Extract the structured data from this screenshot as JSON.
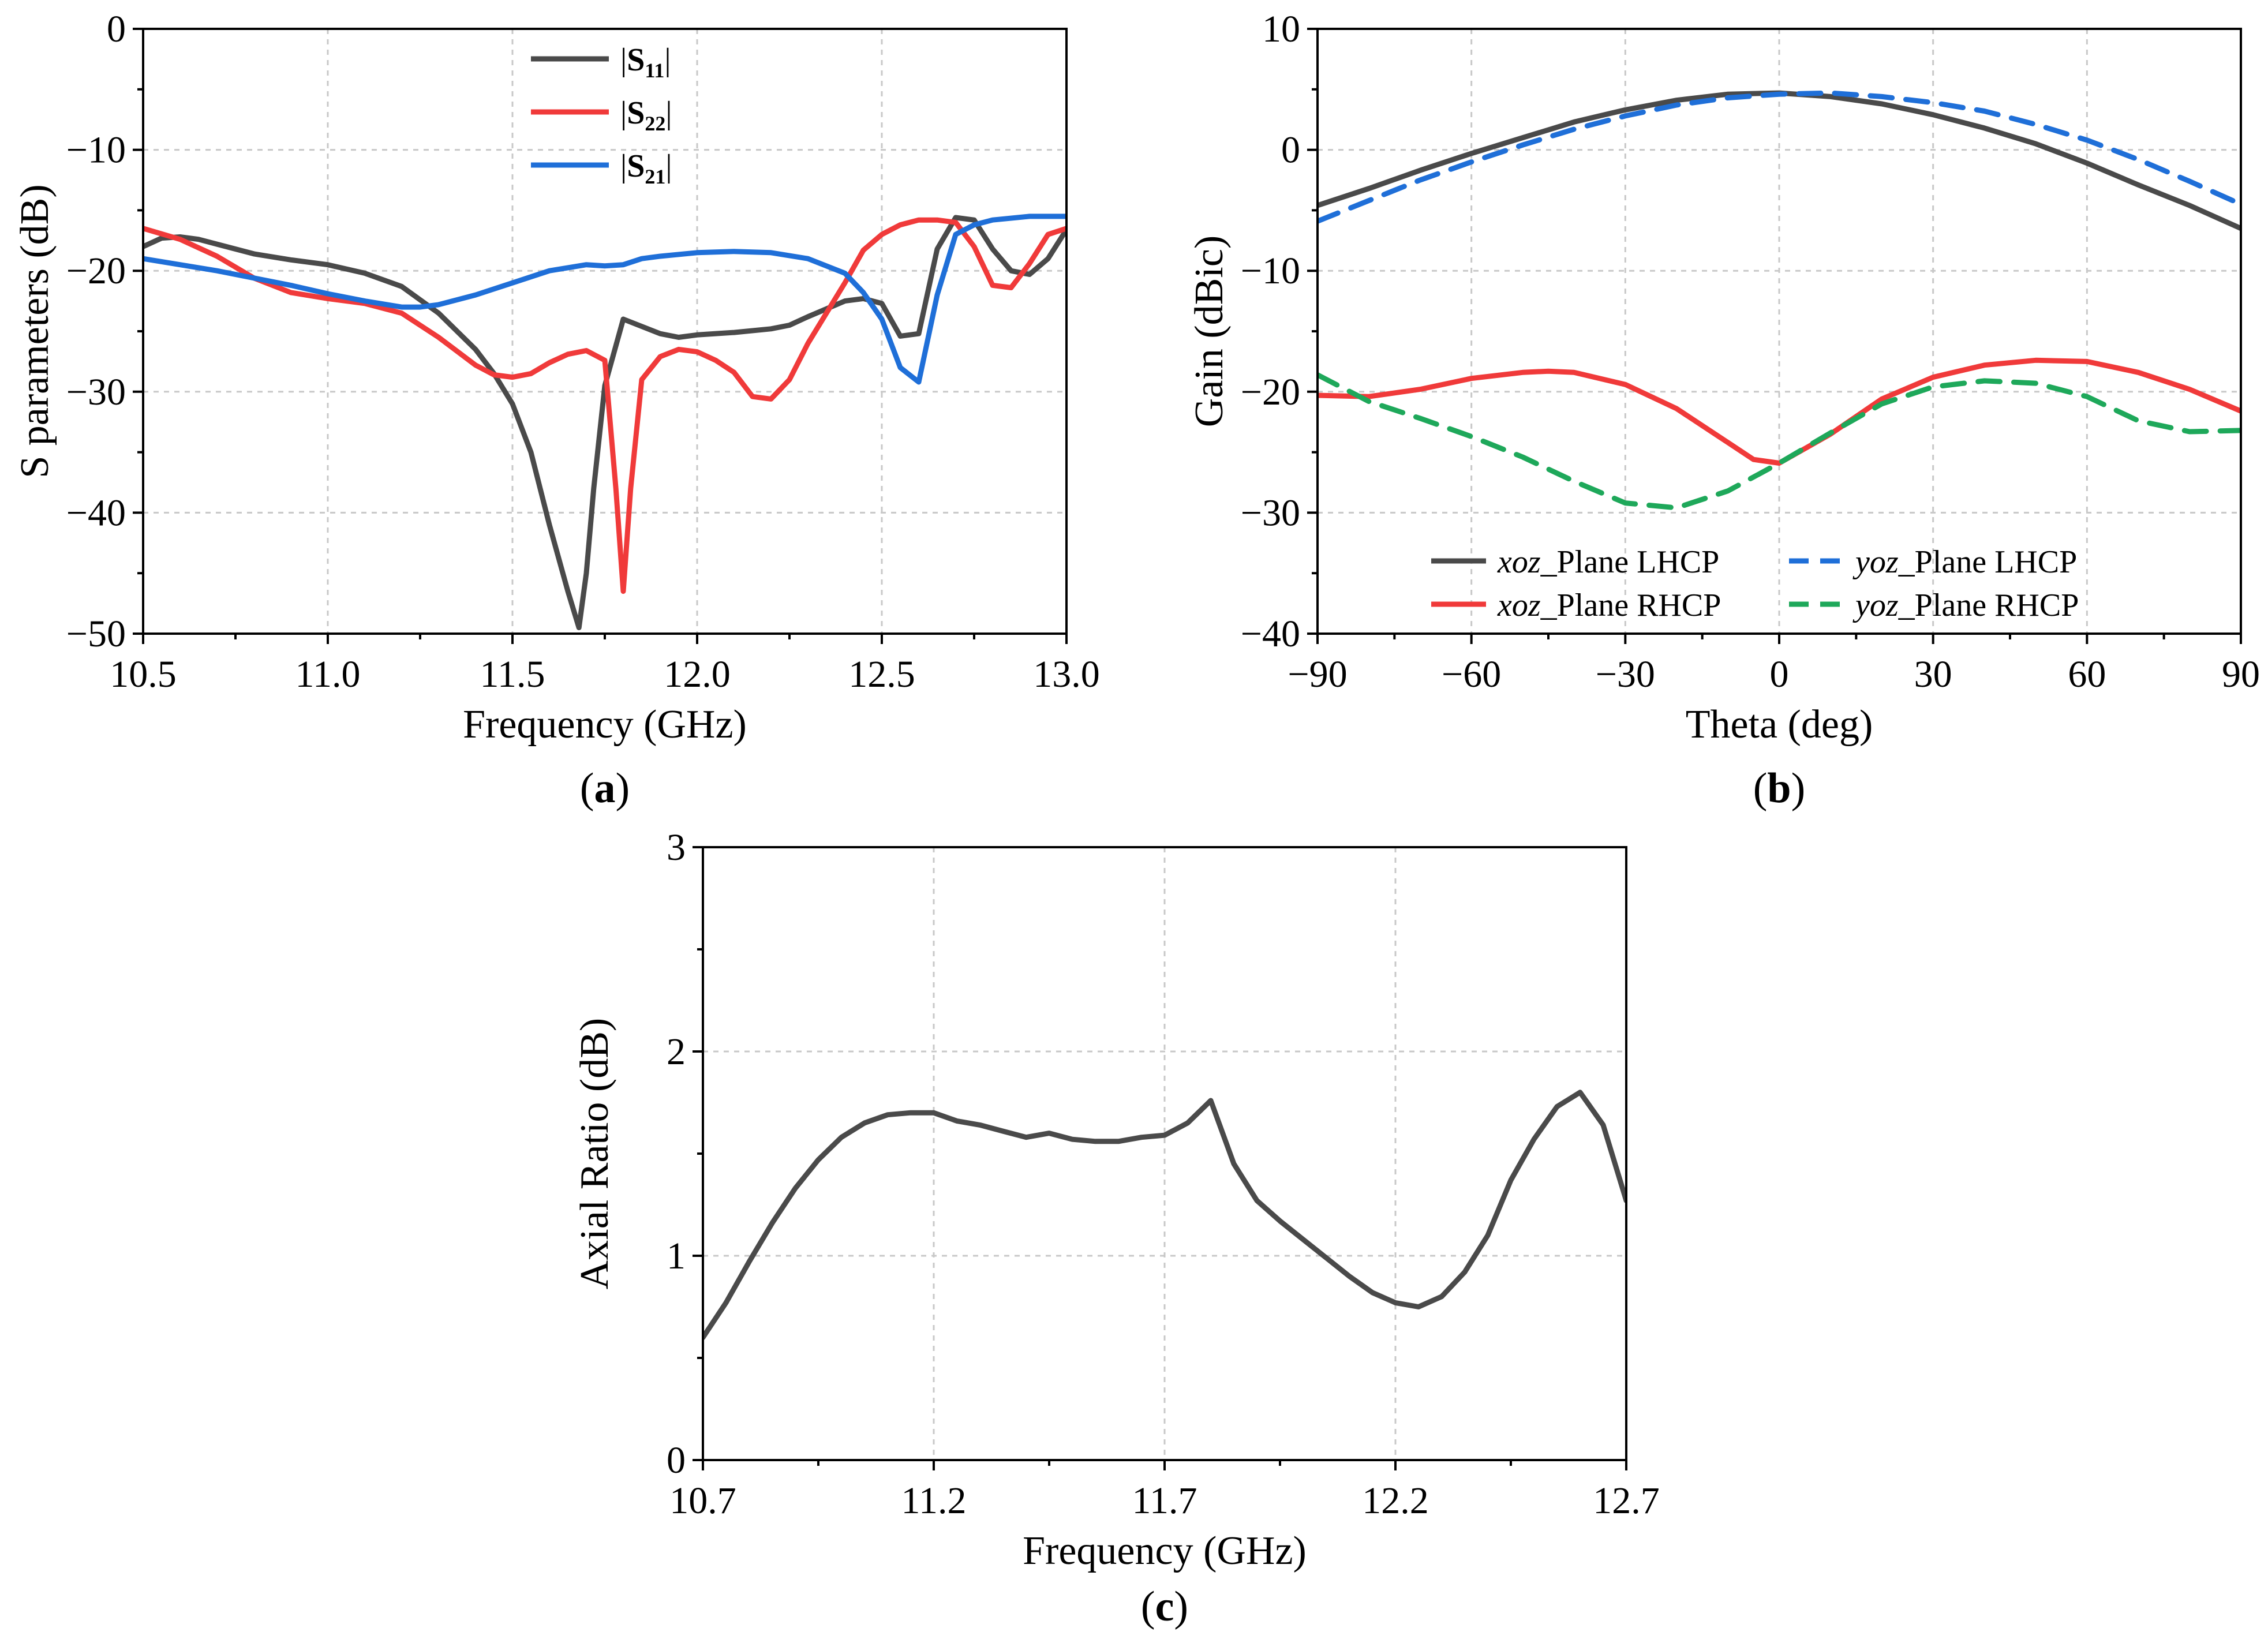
{
  "chart_data": [
    {
      "id": "a",
      "type": "line",
      "panel_label": "(a)",
      "xlabel": "Frequency (GHz)",
      "ylabel": "S parameters (dB)",
      "xlim": [
        10.5,
        13.0
      ],
      "ylim": [
        -50,
        0
      ],
      "xticks": [
        10.5,
        11.0,
        11.5,
        12.0,
        12.5,
        13.0
      ],
      "xtick_labels": [
        "10.5",
        "11.0",
        "11.5",
        "12.0",
        "12.5",
        "13.0"
      ],
      "yticks": [
        -50,
        -40,
        -30,
        -20,
        -10,
        0
      ],
      "ytick_labels": [
        "−50",
        "−40",
        "−30",
        "−20",
        "−10",
        "0"
      ],
      "grid": true,
      "legend_position": "top-center",
      "series": [
        {
          "name": "|S11|",
          "label_main": "S",
          "label_sub": "11",
          "color": "#4a4a4a",
          "dash": "solid",
          "x": [
            10.5,
            10.55,
            10.6,
            10.65,
            10.7,
            10.8,
            10.9,
            11.0,
            11.1,
            11.2,
            11.3,
            11.4,
            11.45,
            11.5,
            11.55,
            11.6,
            11.65,
            11.68,
            11.7,
            11.72,
            11.75,
            11.8,
            11.9,
            11.95,
            12.0,
            12.1,
            12.2,
            12.25,
            12.3,
            12.4,
            12.45,
            12.5,
            12.55,
            12.6,
            12.65,
            12.7,
            12.75,
            12.8,
            12.85,
            12.9,
            12.95,
            13.0
          ],
          "y": [
            -18.0,
            -17.3,
            -17.2,
            -17.4,
            -17.8,
            -18.6,
            -19.1,
            -19.5,
            -20.2,
            -21.3,
            -23.5,
            -26.5,
            -28.5,
            -31.0,
            -35.0,
            -41.0,
            -46.5,
            -49.5,
            -45.0,
            -38.0,
            -29.5,
            -24.0,
            -25.2,
            -25.5,
            -25.3,
            -25.1,
            -24.8,
            -24.5,
            -23.8,
            -22.5,
            -22.3,
            -22.7,
            -25.4,
            -25.2,
            -18.2,
            -15.6,
            -15.8,
            -18.2,
            -20.0,
            -20.3,
            -19.0,
            -16.6
          ]
        },
        {
          "name": "|S22|",
          "label_main": "S",
          "label_sub": "22",
          "color": "#f03a3a",
          "dash": "solid",
          "x": [
            10.5,
            10.6,
            10.7,
            10.8,
            10.9,
            11.0,
            11.1,
            11.2,
            11.3,
            11.4,
            11.45,
            11.5,
            11.55,
            11.6,
            11.65,
            11.7,
            11.75,
            11.78,
            11.8,
            11.82,
            11.85,
            11.9,
            11.95,
            12.0,
            12.05,
            12.1,
            12.15,
            12.2,
            12.25,
            12.3,
            12.35,
            12.4,
            12.45,
            12.5,
            12.55,
            12.6,
            12.65,
            12.7,
            12.75,
            12.8,
            12.85,
            12.9,
            12.95,
            13.0
          ],
          "y": [
            -16.5,
            -17.4,
            -18.8,
            -20.6,
            -21.8,
            -22.3,
            -22.7,
            -23.5,
            -25.5,
            -27.8,
            -28.6,
            -28.8,
            -28.5,
            -27.6,
            -26.9,
            -26.6,
            -27.4,
            -38.0,
            -46.5,
            -38.0,
            -29.0,
            -27.1,
            -26.5,
            -26.7,
            -27.4,
            -28.4,
            -30.4,
            -30.6,
            -29.0,
            -26.0,
            -23.5,
            -21.0,
            -18.3,
            -17.0,
            -16.2,
            -15.8,
            -15.8,
            -16.0,
            -18.0,
            -21.2,
            -21.4,
            -19.4,
            -17.0,
            -16.5
          ]
        },
        {
          "name": "|S21|",
          "label_main": "S",
          "label_sub": "21",
          "color": "#1f6fd8",
          "dash": "solid",
          "x": [
            10.5,
            10.6,
            10.7,
            10.8,
            10.9,
            11.0,
            11.1,
            11.2,
            11.25,
            11.3,
            11.4,
            11.5,
            11.6,
            11.7,
            11.75,
            11.8,
            11.85,
            11.9,
            12.0,
            12.1,
            12.2,
            12.3,
            12.4,
            12.45,
            12.5,
            12.55,
            12.6,
            12.65,
            12.7,
            12.75,
            12.8,
            12.9,
            13.0
          ],
          "y": [
            -19.0,
            -19.5,
            -20.0,
            -20.6,
            -21.2,
            -21.9,
            -22.5,
            -23.0,
            -23.0,
            -22.8,
            -22.0,
            -21.0,
            -20.0,
            -19.5,
            -19.6,
            -19.5,
            -19.0,
            -18.8,
            -18.5,
            -18.4,
            -18.5,
            -19.0,
            -20.2,
            -21.8,
            -24.0,
            -28.0,
            -29.2,
            -22.0,
            -17.0,
            -16.2,
            -15.8,
            -15.5,
            -15.5
          ]
        }
      ]
    },
    {
      "id": "b",
      "type": "line",
      "panel_label": "(b)",
      "xlabel": "Theta (deg)",
      "ylabel": "Gain (dBic)",
      "xlim": [
        -90,
        90
      ],
      "ylim": [
        -40,
        10
      ],
      "xticks": [
        -90,
        -60,
        -30,
        0,
        30,
        60,
        90
      ],
      "xtick_labels": [
        "−90",
        "−60",
        "−30",
        "0",
        "30",
        "60",
        "90"
      ],
      "yticks": [
        -40,
        -30,
        -20,
        -10,
        0,
        10
      ],
      "ytick_labels": [
        "−40",
        "−30",
        "−20",
        "−10",
        "0",
        "10"
      ],
      "grid": true,
      "legend_position": "bottom",
      "series": [
        {
          "name": "xoz_Plane LHCP",
          "label_italic": "xoz",
          "label_rest": "_Plane LHCP",
          "color": "#4a4a4a",
          "dash": "solid",
          "x": [
            -90,
            -80,
            -70,
            -60,
            -50,
            -40,
            -30,
            -20,
            -10,
            0,
            10,
            20,
            30,
            40,
            50,
            60,
            70,
            80,
            90
          ],
          "y": [
            -4.6,
            -3.2,
            -1.7,
            -0.3,
            1.0,
            2.3,
            3.3,
            4.1,
            4.6,
            4.7,
            4.4,
            3.8,
            2.9,
            1.8,
            0.5,
            -1.1,
            -2.9,
            -4.6,
            -6.5
          ]
        },
        {
          "name": "yoz_Plane LHCP",
          "label_italic": "yoz",
          "label_rest": "_Plane LHCP",
          "color": "#1f6fd8",
          "dash": "dashed",
          "x": [
            -90,
            -80,
            -70,
            -60,
            -50,
            -40,
            -30,
            -20,
            -10,
            0,
            10,
            20,
            30,
            40,
            50,
            60,
            70,
            80,
            90
          ],
          "y": [
            -5.9,
            -4.2,
            -2.5,
            -1.0,
            0.4,
            1.7,
            2.8,
            3.7,
            4.3,
            4.6,
            4.7,
            4.4,
            3.9,
            3.2,
            2.1,
            0.8,
            -0.8,
            -2.6,
            -4.5
          ]
        },
        {
          "name": "xoz_Plane RHCP",
          "label_italic": "xoz",
          "label_rest": "_Plane RHCP",
          "color": "#f03a3a",
          "dash": "solid",
          "x": [
            -90,
            -80,
            -70,
            -60,
            -50,
            -45,
            -40,
            -30,
            -20,
            -10,
            -5,
            0,
            10,
            20,
            30,
            40,
            50,
            60,
            70,
            80,
            90
          ],
          "y": [
            -20.3,
            -20.4,
            -19.8,
            -18.9,
            -18.4,
            -18.3,
            -18.4,
            -19.4,
            -21.4,
            -24.2,
            -25.6,
            -25.9,
            -23.5,
            -20.6,
            -18.8,
            -17.8,
            -17.4,
            -17.5,
            -18.4,
            -19.8,
            -21.6
          ]
        },
        {
          "name": "yoz_Plane RHCP",
          "label_italic": "yoz",
          "label_rest": "_Plane RHCP",
          "color": "#1ea85a",
          "dash": "dashed",
          "x": [
            -90,
            -80,
            -70,
            -60,
            -50,
            -40,
            -30,
            -20,
            -10,
            0,
            10,
            20,
            30,
            40,
            50,
            60,
            70,
            80,
            90
          ],
          "y": [
            -18.6,
            -20.8,
            -22.2,
            -23.7,
            -25.4,
            -27.4,
            -29.2,
            -29.6,
            -28.2,
            -25.9,
            -23.4,
            -21.0,
            -19.6,
            -19.1,
            -19.3,
            -20.4,
            -22.4,
            -23.3,
            -23.2
          ]
        }
      ]
    },
    {
      "id": "c",
      "type": "line",
      "panel_label": "(c)",
      "xlabel": "Frequency (GHz)",
      "ylabel": "Axial Ratio (dB)",
      "xlim": [
        10.7,
        12.7
      ],
      "ylim": [
        0,
        3
      ],
      "xticks": [
        10.7,
        11.2,
        11.7,
        12.2,
        12.7
      ],
      "xtick_labels": [
        "10.7",
        "11.2",
        "11.7",
        "12.2",
        "12.7"
      ],
      "yticks": [
        0,
        1,
        2,
        3
      ],
      "ytick_labels": [
        "0",
        "1",
        "2",
        "3"
      ],
      "grid": true,
      "legend_position": "none",
      "series": [
        {
          "name": "Axial Ratio",
          "color": "#4a4a4a",
          "dash": "solid",
          "x": [
            10.7,
            10.75,
            10.8,
            10.85,
            10.9,
            10.95,
            11.0,
            11.05,
            11.1,
            11.15,
            11.2,
            11.25,
            11.3,
            11.35,
            11.4,
            11.45,
            11.5,
            11.55,
            11.6,
            11.65,
            11.7,
            11.75,
            11.8,
            11.85,
            11.9,
            11.95,
            12.0,
            12.05,
            12.1,
            12.15,
            12.2,
            12.25,
            12.3,
            12.35,
            12.4,
            12.45,
            12.5,
            12.55,
            12.6,
            12.65,
            12.7
          ],
          "y": [
            0.6,
            0.77,
            0.97,
            1.16,
            1.33,
            1.47,
            1.58,
            1.65,
            1.69,
            1.7,
            1.7,
            1.66,
            1.64,
            1.61,
            1.58,
            1.6,
            1.57,
            1.56,
            1.56,
            1.58,
            1.59,
            1.65,
            1.76,
            1.45,
            1.27,
            1.17,
            1.08,
            0.99,
            0.9,
            0.82,
            0.77,
            0.75,
            0.8,
            0.92,
            1.1,
            1.37,
            1.57,
            1.73,
            1.8,
            1.64,
            1.27
          ]
        }
      ]
    }
  ]
}
